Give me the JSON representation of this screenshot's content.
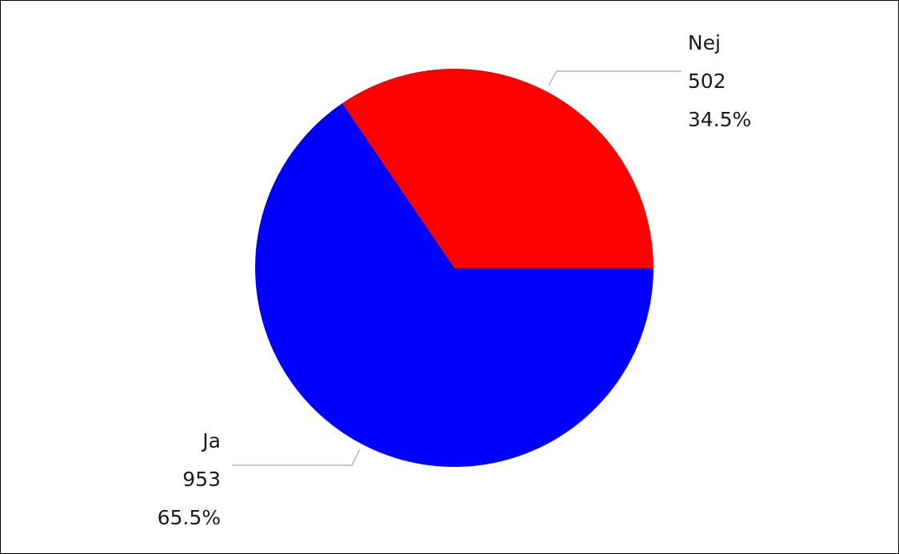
{
  "chart_data": {
    "type": "pie",
    "title": "",
    "slices": [
      {
        "label": "Nej",
        "value": 502,
        "percent": "34.5%",
        "color": "#ff0000"
      },
      {
        "label": "Ja",
        "value": 953,
        "percent": "65.5%",
        "color": "#0000ff"
      }
    ],
    "legend": "none"
  }
}
